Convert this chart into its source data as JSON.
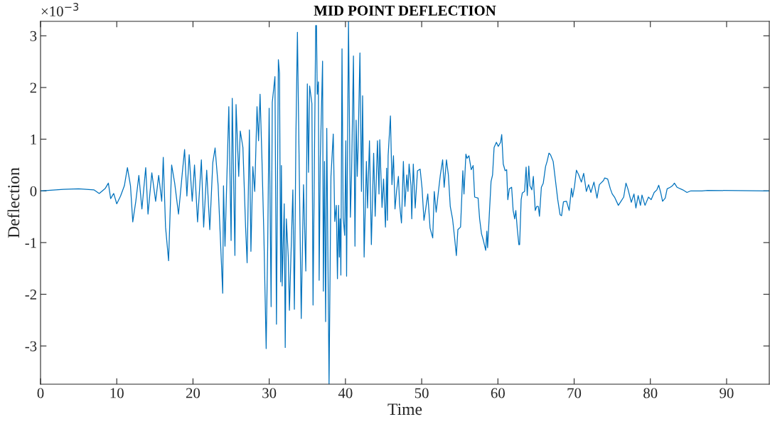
{
  "chart_data": {
    "type": "line",
    "title": "MID POINT DEFLECTION",
    "xlabel": "Time",
    "ylabel": "Deflection",
    "annotations": [
      "×10$^{−3}$"
    ],
    "xlim": [
      0,
      95.6
    ],
    "xticks": [
      0,
      10,
      20,
      30,
      40,
      50,
      60,
      70,
      80,
      90
    ],
    "ylim": [
      -3.74,
      3.28
    ],
    "yticks": [
      -3,
      -2,
      -1,
      0,
      1,
      2,
      3
    ],
    "grid": false,
    "marker": "none",
    "line_style": "solid",
    "series": [
      {
        "color": "#0072bd",
        "x": [
          0,
          3,
          5,
          7,
          7.7,
          8.5,
          8.9,
          9.2,
          9.6,
          10,
          10.5,
          11,
          11.4,
          11.8,
          12.1,
          12.5,
          12.9,
          13.3,
          13.8,
          14.1,
          14.6,
          15.1,
          15.5,
          15.9,
          16.1,
          16.4,
          16.8,
          17.2,
          17.6,
          18.1,
          18.6,
          18.9,
          19.2,
          19.5,
          19.9,
          20.2,
          20.6,
          21.1,
          21.4,
          21.8,
          22.2,
          22.6,
          22.9,
          23.3,
          23.9,
          24.0,
          24.2,
          24.7,
          25.0,
          25.15,
          25.5,
          25.65,
          26.0,
          26.2,
          26.55,
          26.9,
          27.1,
          27.4,
          27.6,
          27.85,
          28.1,
          28.4,
          28.6,
          28.8,
          29.05,
          29.3,
          29.6,
          29.8,
          29.99,
          30.25,
          30.4,
          30.75,
          30.95,
          31.2,
          31.35,
          31.5,
          31.6,
          31.7,
          31.97,
          32.1,
          32.25,
          32.5,
          32.65,
          33.1,
          33.3,
          33.5,
          33.7,
          34.2,
          34.5,
          34.8,
          35.0,
          35.15,
          35.3,
          35.6,
          35.75,
          36.1,
          36.2,
          36.3,
          36.45,
          36.55,
          36.7,
          37.0,
          37.1,
          37.25,
          37.4,
          37.55,
          37.85,
          38.1,
          38.4,
          38.6,
          38.8,
          38.95,
          39.1,
          39.2,
          39.3,
          39.4,
          39.55,
          39.7,
          39.9,
          40.05,
          40.15,
          40.4,
          40.65,
          40.8,
          41.05,
          41.25,
          41.4,
          41.55,
          41.65,
          41.9,
          42.1,
          42.25,
          42.45,
          42.75,
          42.9,
          43.15,
          43.4,
          43.7,
          43.9,
          44.2,
          44.4,
          44.5,
          44.8,
          45.0,
          45.25,
          45.4,
          45.5,
          45.6,
          45.9,
          46.1,
          46.3,
          46.5,
          46.7,
          46.95,
          47.1,
          47.35,
          47.6,
          47.8,
          48.05,
          48.2,
          48.35,
          48.6,
          48.7,
          48.9,
          49.15,
          49.45,
          49.8,
          50.05,
          50.3,
          50.5,
          50.8,
          51.1,
          51.45,
          51.65,
          51.9,
          52.2,
          52.45,
          52.75,
          52.95,
          53.25,
          53.5,
          53.75,
          54.05,
          54.3,
          54.55,
          54.75,
          55.1,
          55.4,
          55.55,
          55.8,
          55.95,
          56.2,
          56.5,
          56.75,
          56.95,
          57.4,
          57.6,
          57.85,
          58.1,
          58.4,
          58.55,
          58.65,
          58.9,
          59.1,
          59.3,
          59.5,
          59.8,
          60.05,
          60.35,
          60.5,
          60.7,
          60.95,
          61.15,
          61.3,
          61.5,
          61.8,
          62.0,
          62.2,
          62.35,
          62.55,
          62.75,
          62.85,
          63.05,
          63.2,
          63.5,
          63.7,
          63.85,
          64.05,
          64.2,
          64.45,
          64.65,
          64.75,
          64.9,
          65.1,
          65.3,
          65.45,
          65.7,
          65.95,
          66.25,
          66.45,
          66.7,
          66.9,
          67.25,
          67.55,
          67.85,
          68.15,
          68.35,
          68.6,
          69.0,
          69.35,
          69.65,
          69.8,
          70.05,
          70.3,
          70.6,
          70.95,
          71.25,
          71.6,
          71.9,
          72.2,
          72.6,
          73.0,
          73.3,
          73.85,
          74.0,
          74.4,
          74.75,
          75.0,
          75.3,
          75.8,
          76.15,
          76.5,
          76.8,
          77.05,
          77.5,
          77.85,
          78.1,
          78.4,
          78.7,
          78.9,
          79.3,
          79.75,
          80.1,
          80.5,
          80.85,
          81.1,
          81.35,
          81.6,
          81.95,
          82.2,
          82.6,
          82.9,
          83.15,
          83.5,
          84.25,
          84.8,
          85.3,
          86.75,
          87.5,
          95.6
        ],
        "values": [
          0,
          0.03,
          0.04,
          0.02,
          -0.05,
          0.05,
          0.15,
          -0.15,
          -0.05,
          -0.25,
          -0.1,
          0.1,
          0.45,
          0.1,
          -0.6,
          -0.2,
          0.3,
          -0.35,
          0.45,
          -0.45,
          0.35,
          -0.2,
          0.3,
          -0.2,
          0.65,
          -0.7,
          -1.35,
          0.5,
          0.15,
          -0.45,
          0.35,
          0.8,
          -0.1,
          0.7,
          -0.2,
          0.5,
          -0.6,
          0.6,
          -0.7,
          0.4,
          -0.75,
          0.55,
          0.83,
          0.1,
          -1.98,
          0.1,
          -1.07,
          1.63,
          -0.96,
          1.79,
          -1.25,
          1.67,
          0.28,
          1.16,
          0.84,
          -0.7,
          -1.39,
          1.18,
          -1.17,
          0.47,
          -0.01,
          1.63,
          0.97,
          1.87,
          0.6,
          -0.86,
          -3.05,
          -1.07,
          1.6,
          -2.24,
          1.71,
          2.21,
          -2.58,
          2.54,
          2.27,
          -1.76,
          0.49,
          -1.84,
          -0.25,
          -3.03,
          -0.54,
          -1.28,
          -2.31,
          0.02,
          -2.29,
          1.03,
          3.07,
          -2.47,
          0.12,
          -1.55,
          2.07,
          0.36,
          2.03,
          1.69,
          -2.21,
          3.2,
          3.2,
          1.87,
          2.11,
          -1.73,
          0.63,
          2.51,
          -1.94,
          0.57,
          -2.53,
          1.21,
          -3.74,
          0.28,
          1.1,
          -0.59,
          -0.28,
          -1.7,
          -0.28,
          -1.28,
          -0.54,
          -1.63,
          2.75,
          -0.51,
          -0.86,
          0.97,
          -1.65,
          3.28,
          -0.51,
          0.31,
          2.61,
          -1.07,
          1.37,
          0.28,
          0.78,
          2.67,
          -0.01,
          1.84,
          -1.28,
          0.57,
          -0.33,
          0.97,
          -1.04,
          0.73,
          -0.49,
          0.97,
          -0.06,
          0.99,
          -0.32,
          0.23,
          -0.7,
          0.44,
          -0.57,
          0.68,
          1.45,
          0.12,
          0.68,
          -0.35,
          -0.01,
          0.28,
          -0.25,
          -0.62,
          0.57,
          -0.3,
          0.31,
          -0.01,
          0.52,
          0.1,
          -0.54,
          0.52,
          -0.33,
          0.39,
          0.42,
          0.05,
          -0.57,
          -0.38,
          -0.06,
          -0.72,
          -0.91,
          -0.01,
          -0.41,
          -0.01,
          0.31,
          0.6,
          0.07,
          0.6,
          0.31,
          -0.3,
          -0.54,
          -0.88,
          -1.25,
          -0.75,
          -0.7,
          0.39,
          -0.06,
          0.71,
          0.63,
          0.68,
          0.41,
          0.49,
          -0.12,
          -0.14,
          -0.54,
          -0.83,
          -0.96,
          -1.15,
          -0.78,
          -1.1,
          -0.38,
          0.18,
          0.31,
          0.84,
          0.94,
          0.86,
          0.94,
          1.09,
          0.52,
          0.39,
          0.41,
          -0.17,
          0.04,
          0.07,
          -0.38,
          -0.54,
          -0.38,
          -0.75,
          -1.04,
          -1.04,
          -0.17,
          -0.04,
          -0.01,
          0.46,
          -0.09,
          0.48,
          0.1,
          0.02,
          0.28,
          -0.01,
          -0.38,
          -0.3,
          -0.3,
          -0.49,
          0.07,
          0.15,
          0.47,
          0.57,
          0.73,
          0.7,
          0.57,
          0.2,
          -0.17,
          -0.46,
          -0.48,
          -0.21,
          -0.2,
          -0.38,
          0.05,
          -0.12,
          0.09,
          0.4,
          0.31,
          0.17,
          0.34,
          -0.01,
          0.12,
          -0.03,
          0.17,
          -0.14,
          0.12,
          0.2,
          0.25,
          0.23,
          0.04,
          -0.06,
          -0.12,
          -0.28,
          -0.2,
          -0.12,
          0.15,
          0.04,
          -0.22,
          -0.06,
          -0.33,
          -0.09,
          -0.28,
          -0.08,
          -0.28,
          -0.12,
          -0.17,
          -0.03,
          0.02,
          0.11,
          -0.03,
          -0.2,
          -0.14,
          0.04,
          0.07,
          0.1,
          0.15,
          0.07,
          0.02,
          -0.03,
          0,
          0,
          0.01,
          0
        ]
      }
    ]
  }
}
